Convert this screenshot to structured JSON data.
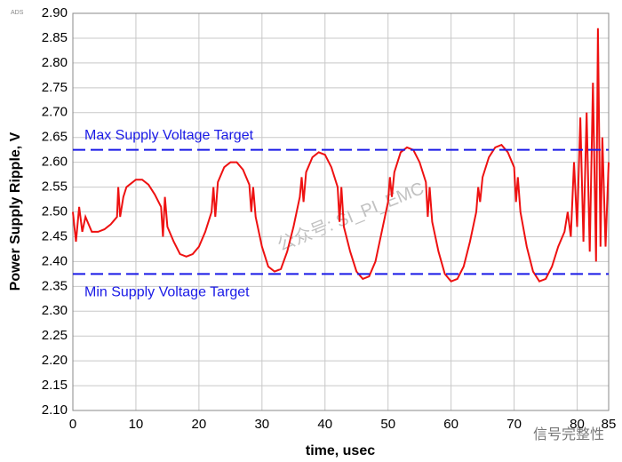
{
  "chart_data": {
    "type": "line",
    "badge": "ADS",
    "xlabel": "time, usec",
    "ylabel": "Power Supply Ripple, V",
    "x": [
      0,
      0.5,
      1,
      1.5,
      2,
      3,
      4,
      5,
      6,
      7,
      7.2,
      7.5,
      8,
      8.5,
      9,
      10,
      11,
      12,
      13,
      14,
      14.3,
      14.6,
      15,
      16,
      17,
      18,
      19,
      20,
      21,
      22,
      22.3,
      22.6,
      23,
      24,
      25,
      26,
      27,
      28,
      28.3,
      28.6,
      29,
      30,
      31,
      32,
      33,
      34,
      35,
      36,
      36.3,
      36.6,
      37,
      38,
      39,
      40,
      41,
      42,
      42.3,
      42.6,
      43,
      44,
      45,
      46,
      47,
      48,
      49,
      50,
      50.3,
      50.6,
      51,
      52,
      53,
      54,
      55,
      56,
      56.3,
      56.6,
      57,
      58,
      59,
      60,
      61,
      62,
      63,
      64,
      64.3,
      64.6,
      65,
      66,
      67,
      68,
      69,
      70,
      70.3,
      70.6,
      71,
      72,
      73,
      74,
      75,
      76,
      77,
      78,
      78.5,
      79,
      79.5,
      80,
      80.5,
      81,
      81.5,
      82,
      82.5,
      83,
      83.3,
      83.7,
      84,
      84.5,
      85
    ],
    "series": [
      {
        "name": "ripple",
        "color": "#ee1111",
        "values": [
          2.5,
          2.44,
          2.51,
          2.46,
          2.49,
          2.46,
          2.46,
          2.465,
          2.475,
          2.49,
          2.55,
          2.49,
          2.53,
          2.55,
          2.555,
          2.565,
          2.565,
          2.555,
          2.535,
          2.51,
          2.45,
          2.53,
          2.47,
          2.44,
          2.415,
          2.41,
          2.415,
          2.43,
          2.46,
          2.5,
          2.55,
          2.49,
          2.56,
          2.59,
          2.6,
          2.6,
          2.585,
          2.555,
          2.5,
          2.55,
          2.49,
          2.43,
          2.39,
          2.38,
          2.385,
          2.42,
          2.47,
          2.53,
          2.57,
          2.52,
          2.58,
          2.61,
          2.62,
          2.615,
          2.59,
          2.55,
          2.48,
          2.55,
          2.47,
          2.42,
          2.38,
          2.365,
          2.37,
          2.4,
          2.46,
          2.52,
          2.57,
          2.53,
          2.58,
          2.62,
          2.63,
          2.625,
          2.6,
          2.56,
          2.49,
          2.55,
          2.48,
          2.42,
          2.375,
          2.36,
          2.365,
          2.39,
          2.44,
          2.5,
          2.55,
          2.52,
          2.57,
          2.61,
          2.63,
          2.635,
          2.62,
          2.59,
          2.52,
          2.57,
          2.5,
          2.43,
          2.38,
          2.36,
          2.365,
          2.39,
          2.43,
          2.46,
          2.5,
          2.45,
          2.6,
          2.47,
          2.69,
          2.44,
          2.7,
          2.42,
          2.76,
          2.4,
          2.87,
          2.43,
          2.65,
          2.43,
          2.6
        ]
      }
    ],
    "reference_lines": [
      {
        "value": 2.625,
        "label": "Max Supply Voltage Target",
        "color": "#1a1ae6"
      },
      {
        "value": 2.375,
        "label": "Min Supply Voltage Target",
        "color": "#1a1ae6"
      }
    ],
    "watermarks": [
      "公众号: SI_PI_EMC",
      "信号完整性"
    ],
    "xlim": [
      0,
      85
    ],
    "xticks": [
      0,
      10,
      20,
      30,
      40,
      50,
      60,
      70,
      80,
      85
    ],
    "ylim": [
      2.1,
      2.9
    ],
    "yticks": [
      {
        "value": 2.1,
        "label": "2.10"
      },
      2.15,
      {
        "value": 2.2,
        "label": "2.20"
      },
      2.25,
      {
        "value": 2.3,
        "label": "2.30"
      },
      2.35,
      {
        "value": 2.4,
        "label": "2.40"
      },
      2.45,
      {
        "value": 2.5,
        "label": "2.50"
      },
      2.55,
      {
        "value": 2.6,
        "label": "2.60"
      },
      2.65,
      {
        "value": 2.7,
        "label": "2.70"
      },
      2.75,
      {
        "value": 2.8,
        "label": "2.80"
      },
      2.85,
      {
        "value": 2.9,
        "label": "2.90"
      }
    ],
    "grid": true
  }
}
